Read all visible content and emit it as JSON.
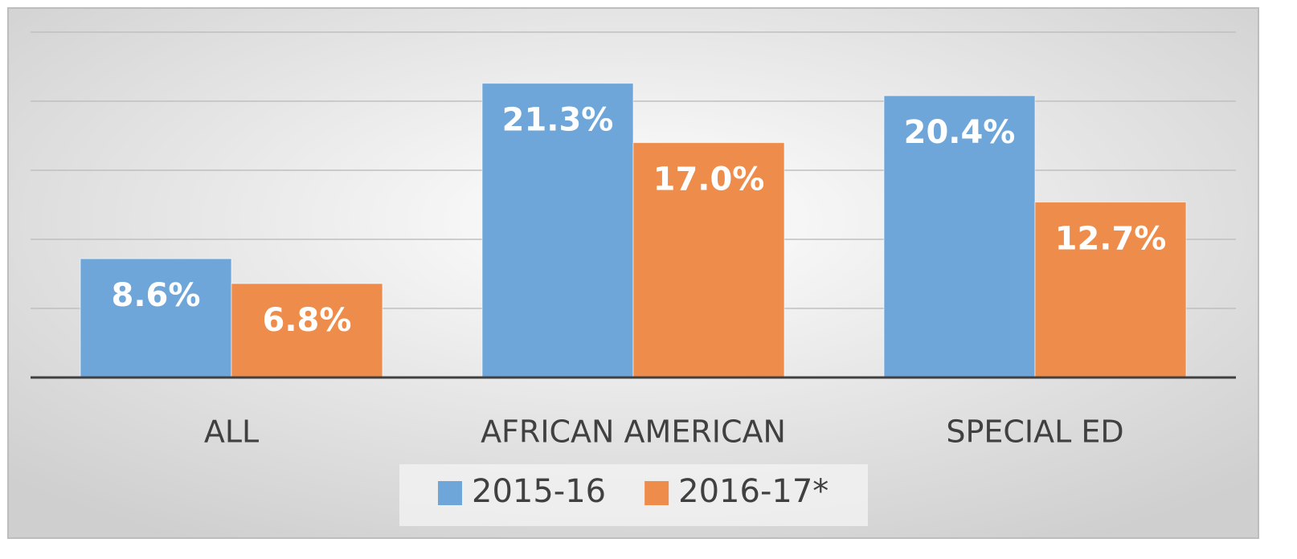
{
  "chart_data": {
    "type": "bar",
    "categories": [
      "ALL",
      "AFRICAN AMERICAN",
      "SPECIAL ED"
    ],
    "series": [
      {
        "name": "2015-16",
        "color": "#6fa6da",
        "values": [
          8.6,
          21.3,
          20.4
        ],
        "value_labels": [
          "8.6%",
          "21.3%",
          "20.4%"
        ]
      },
      {
        "name": "2016-17*",
        "color": "#ee8c4b",
        "values": [
          6.8,
          17.0,
          12.7
        ],
        "value_labels": [
          "6.8%",
          "17.0%",
          "12.7%"
        ]
      }
    ],
    "ylim": [
      0,
      25
    ],
    "yticks": [
      0,
      5,
      10,
      15,
      20,
      25
    ],
    "grid": true
  }
}
